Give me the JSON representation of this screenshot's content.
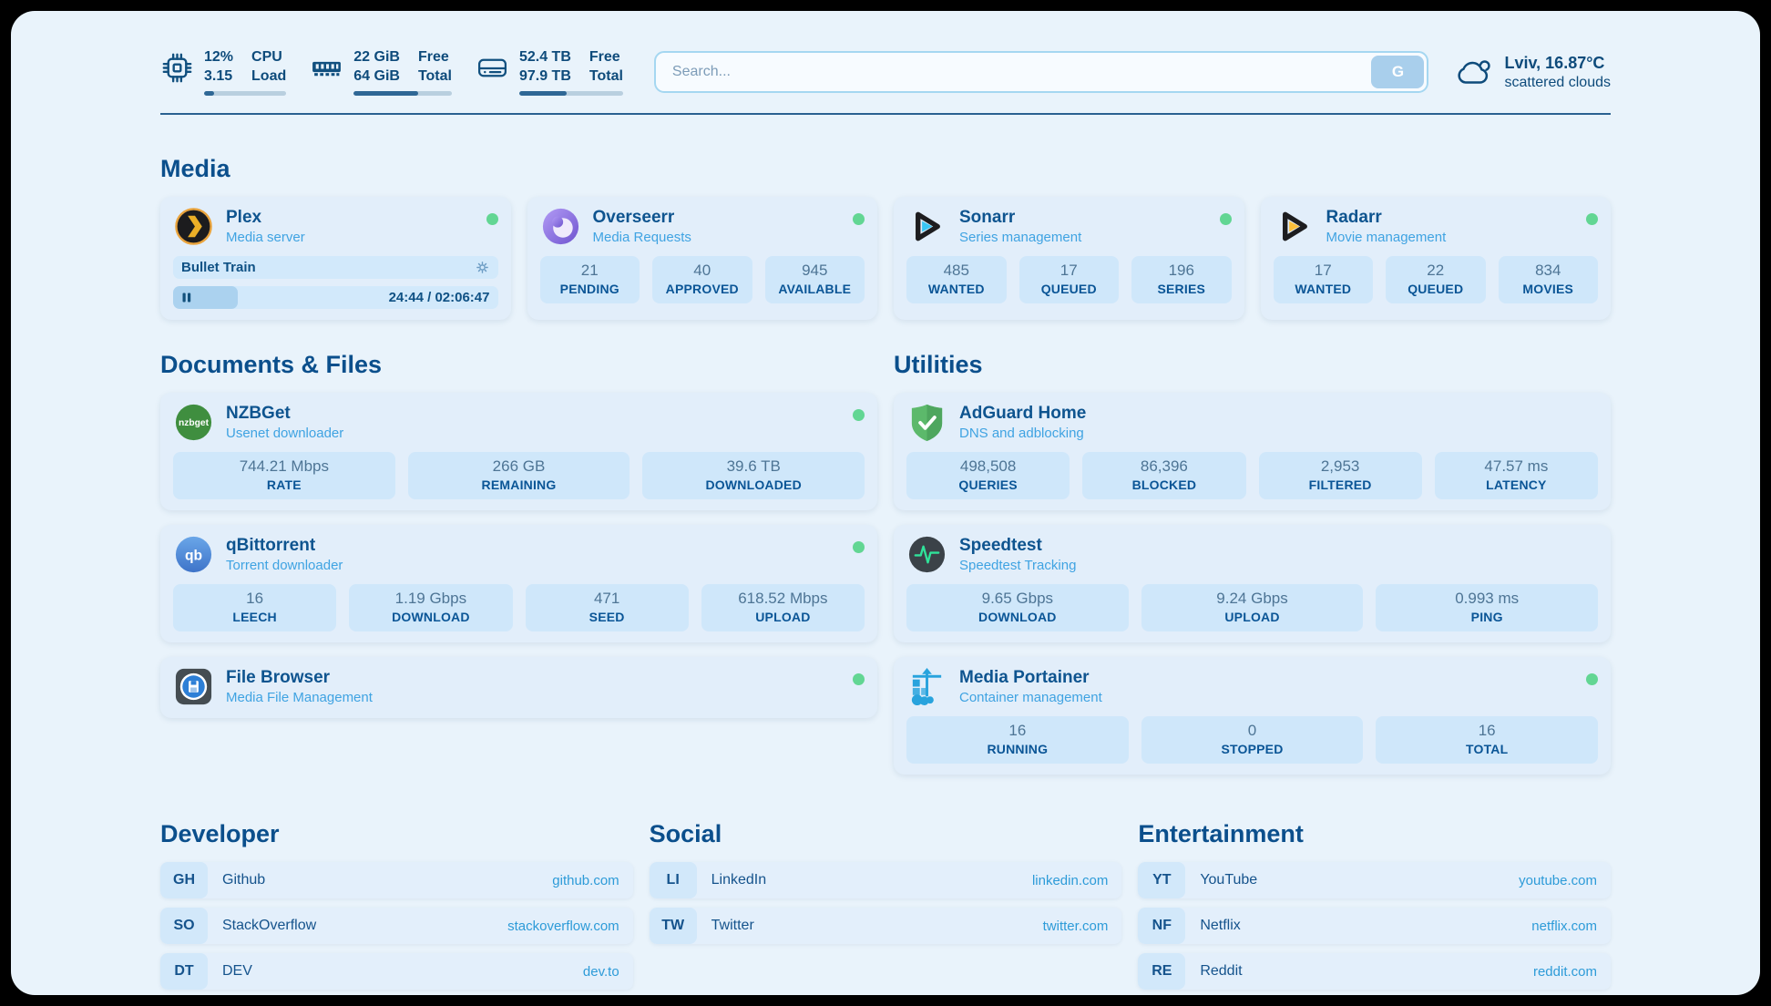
{
  "topbar": {
    "cpu": {
      "percent": "12%",
      "load": "3.15",
      "label_top": "CPU",
      "label_bottom": "Load",
      "progress": 12
    },
    "memory": {
      "free": "22 GiB",
      "total": "64 GiB",
      "label_top": "Free",
      "label_bottom": "Total",
      "progress": 66
    },
    "disk": {
      "free": "52.4 TB",
      "total": "97.9 TB",
      "label_top": "Free",
      "label_bottom": "Total",
      "progress": 46
    },
    "search": {
      "placeholder": "Search...",
      "button_label": "G"
    },
    "weather": {
      "location": "Lviv, 16.87°C",
      "condition": "scattered clouds"
    }
  },
  "sections": {
    "media": {
      "title": "Media"
    },
    "documents": {
      "title": "Documents & Files"
    },
    "utilities": {
      "title": "Utilities"
    }
  },
  "apps": {
    "plex": {
      "name": "Plex",
      "subtitle": "Media server",
      "now_playing": {
        "title": "Bullet Train",
        "time": "24:44 / 02:06:47",
        "progress": 20
      }
    },
    "overseerr": {
      "name": "Overseerr",
      "subtitle": "Media Requests",
      "stats": [
        {
          "value": "21",
          "label": "PENDING"
        },
        {
          "value": "40",
          "label": "APPROVED"
        },
        {
          "value": "945",
          "label": "AVAILABLE"
        }
      ]
    },
    "sonarr": {
      "name": "Sonarr",
      "subtitle": "Series management",
      "stats": [
        {
          "value": "485",
          "label": "WANTED"
        },
        {
          "value": "17",
          "label": "QUEUED"
        },
        {
          "value": "196",
          "label": "SERIES"
        }
      ]
    },
    "radarr": {
      "name": "Radarr",
      "subtitle": "Movie management",
      "stats": [
        {
          "value": "17",
          "label": "WANTED"
        },
        {
          "value": "22",
          "label": "QUEUED"
        },
        {
          "value": "834",
          "label": "MOVIES"
        }
      ]
    },
    "nzbget": {
      "name": "NZBGet",
      "subtitle": "Usenet downloader",
      "stats": [
        {
          "value": "744.21 Mbps",
          "label": "RATE"
        },
        {
          "value": "266 GB",
          "label": "REMAINING"
        },
        {
          "value": "39.6 TB",
          "label": "DOWNLOADED"
        }
      ]
    },
    "qbittorrent": {
      "name": "qBittorrent",
      "subtitle": "Torrent downloader",
      "stats": [
        {
          "value": "16",
          "label": "LEECH"
        },
        {
          "value": "1.19 Gbps",
          "label": "DOWNLOAD"
        },
        {
          "value": "471",
          "label": "SEED"
        },
        {
          "value": "618.52 Mbps",
          "label": "UPLOAD"
        }
      ]
    },
    "filebrowser": {
      "name": "File Browser",
      "subtitle": "Media File Management"
    },
    "adguard": {
      "name": "AdGuard Home",
      "subtitle": "DNS and adblocking",
      "stats": [
        {
          "value": "498,508",
          "label": "QUERIES"
        },
        {
          "value": "86,396",
          "label": "BLOCKED"
        },
        {
          "value": "2,953",
          "label": "FILTERED"
        },
        {
          "value": "47.57 ms",
          "label": "LATENCY"
        }
      ]
    },
    "speedtest": {
      "name": "Speedtest",
      "subtitle": "Speedtest Tracking",
      "stats": [
        {
          "value": "9.65 Gbps",
          "label": "DOWNLOAD"
        },
        {
          "value": "9.24 Gbps",
          "label": "UPLOAD"
        },
        {
          "value": "0.993 ms",
          "label": "PING"
        }
      ]
    },
    "portainer": {
      "name": "Media Portainer",
      "subtitle": "Container management",
      "stats": [
        {
          "value": "16",
          "label": "RUNNING"
        },
        {
          "value": "0",
          "label": "STOPPED"
        },
        {
          "value": "16",
          "label": "TOTAL"
        }
      ]
    }
  },
  "bookmarks": {
    "developer": {
      "title": "Developer",
      "links": [
        {
          "abbr": "GH",
          "name": "Github",
          "url": "github.com"
        },
        {
          "abbr": "SO",
          "name": "StackOverflow",
          "url": "stackoverflow.com"
        },
        {
          "abbr": "DT",
          "name": "DEV",
          "url": "dev.to"
        }
      ]
    },
    "social": {
      "title": "Social",
      "links": [
        {
          "abbr": "LI",
          "name": "LinkedIn",
          "url": "linkedin.com"
        },
        {
          "abbr": "TW",
          "name": "Twitter",
          "url": "twitter.com"
        }
      ]
    },
    "entertainment": {
      "title": "Entertainment",
      "links": [
        {
          "abbr": "YT",
          "name": "YouTube",
          "url": "youtube.com"
        },
        {
          "abbr": "NF",
          "name": "Netflix",
          "url": "netflix.com"
        },
        {
          "abbr": "RE",
          "name": "Reddit",
          "url": "reddit.com"
        }
      ]
    }
  },
  "icons": {
    "nzbget_text": "nzbget",
    "qbittorrent_text": "qb"
  },
  "colors": {
    "accent": "#0e548f",
    "subtitle_blue": "#3fa3e2",
    "status_online": "#62d693",
    "link": "#2d9bd8",
    "stat_box": "#cfe7fa",
    "card_bg": "#e2eefa",
    "page_bg": "#e9f3fb"
  }
}
